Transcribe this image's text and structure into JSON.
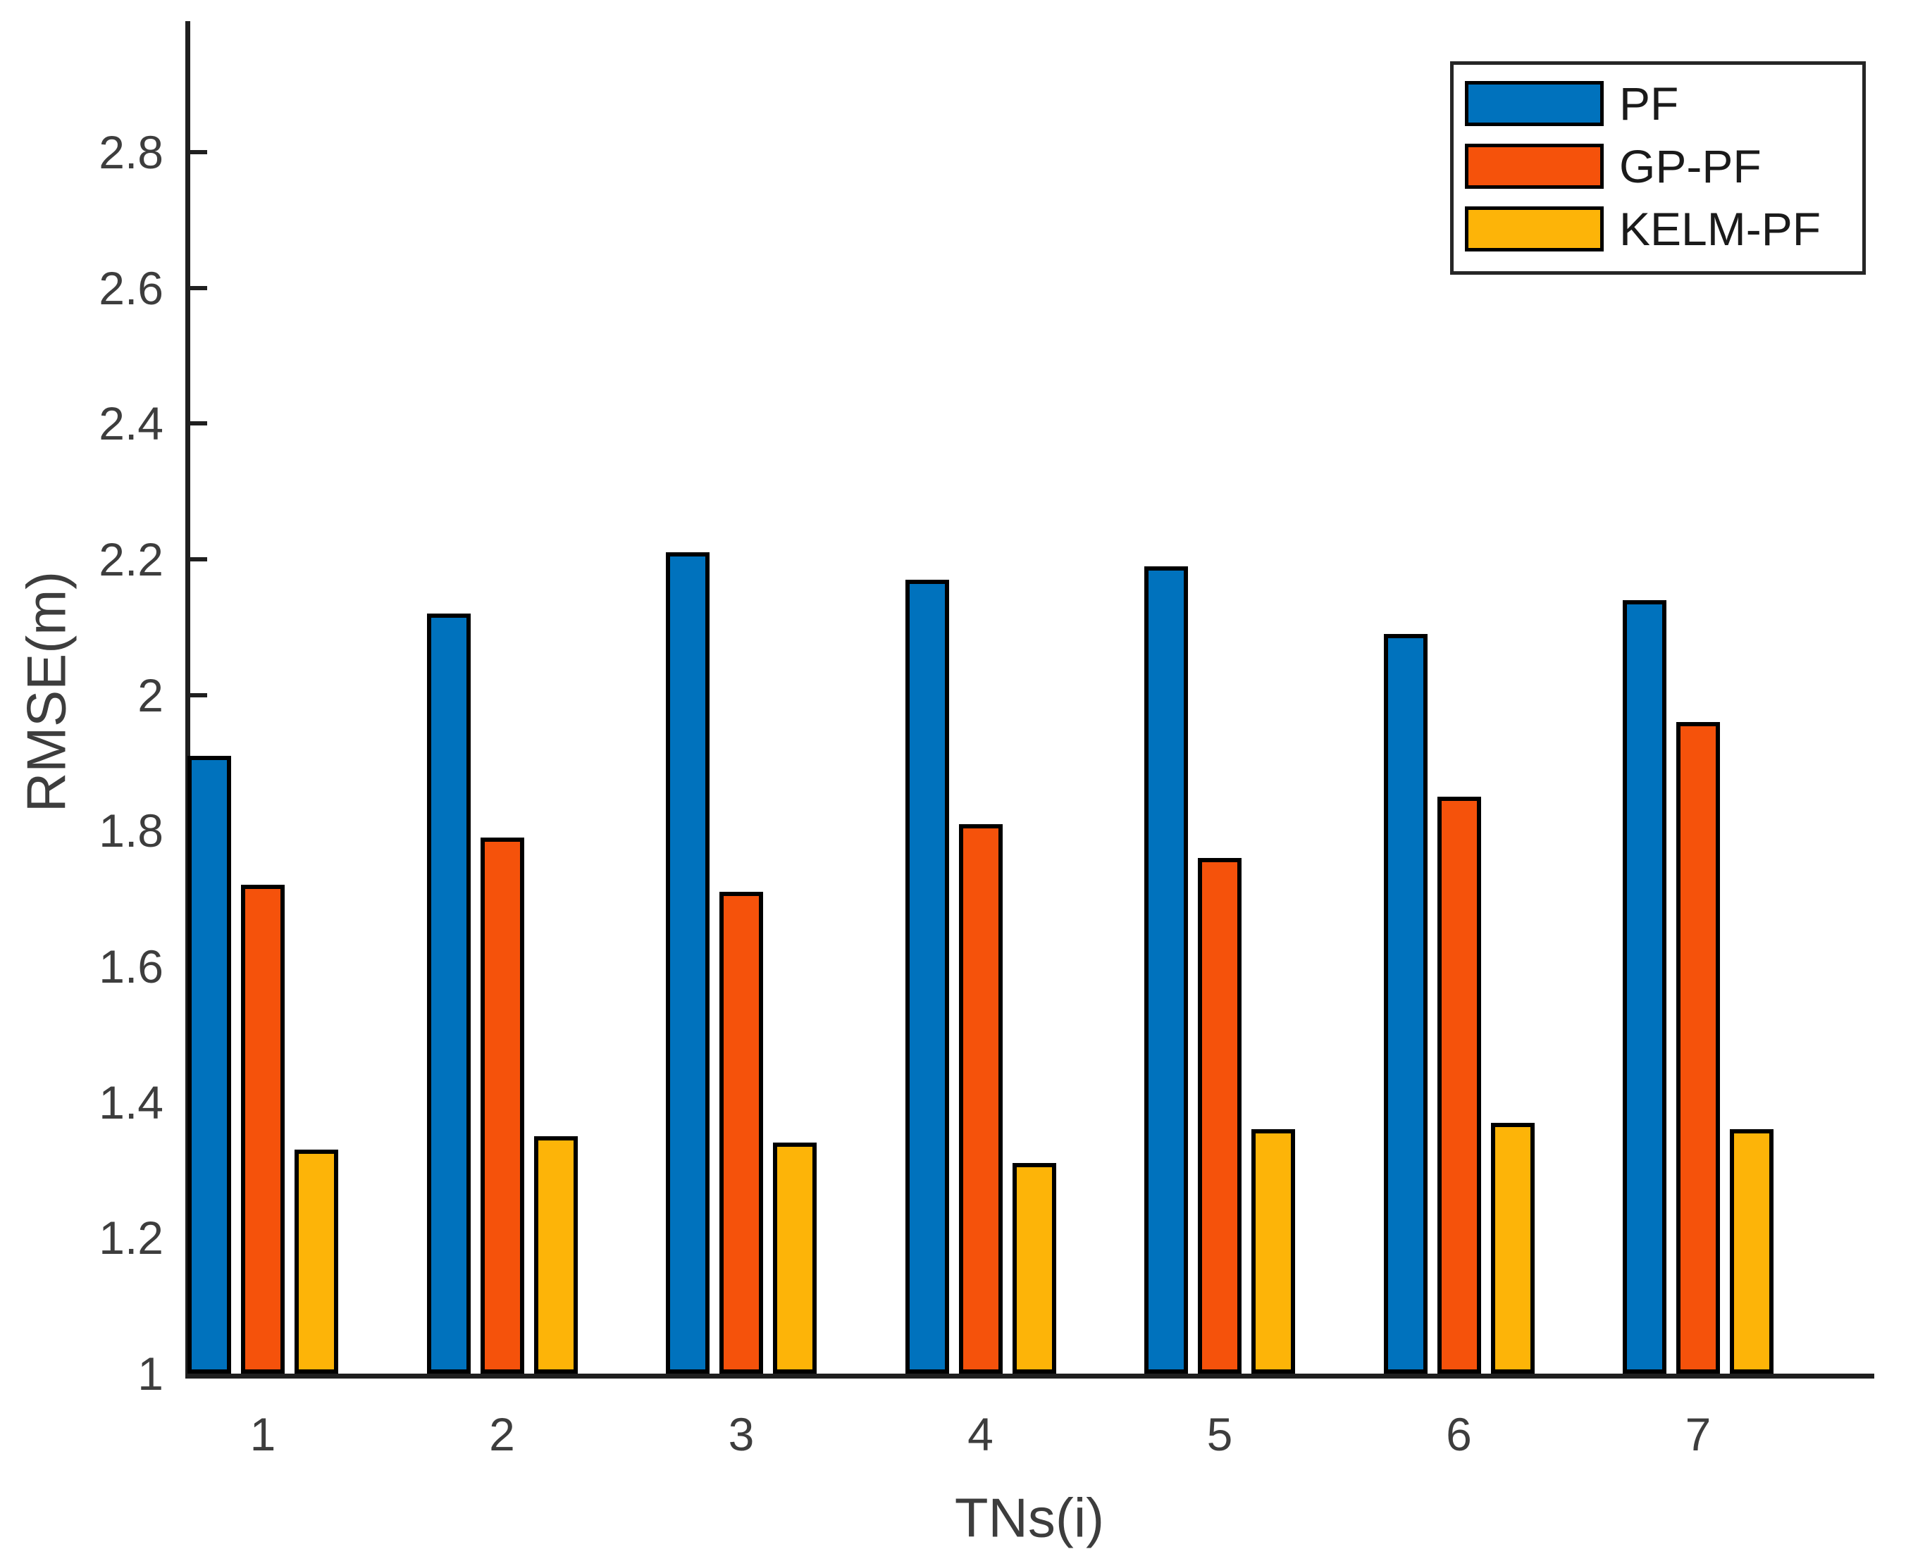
{
  "chart_data": {
    "type": "bar",
    "title": "",
    "xlabel": "TNs(i)",
    "ylabel": "RMSE(m)",
    "categories": [
      "1",
      "2",
      "3",
      "4",
      "5",
      "6",
      "7"
    ],
    "series": [
      {
        "name": "PF",
        "color": "#0072BD",
        "values": [
          1.91,
          2.12,
          2.21,
          2.17,
          2.19,
          2.09,
          2.14
        ]
      },
      {
        "name": "GP-PF",
        "color": "#F5520B",
        "values": [
          1.72,
          1.79,
          1.71,
          1.81,
          1.76,
          1.85,
          1.96
        ]
      },
      {
        "name": "KELM-PF",
        "color": "#FDB408",
        "values": [
          1.33,
          1.35,
          1.34,
          1.31,
          1.36,
          1.37,
          1.36
        ]
      }
    ],
    "ylim": [
      1,
      3
    ],
    "yticks": [
      1,
      1.2,
      1.4,
      1.6,
      1.8,
      2,
      2.2,
      2.4,
      2.6,
      2.8
    ],
    "ytick_labels": [
      "1",
      "1.2",
      "1.4",
      "1.6",
      "1.8",
      "2",
      "2.2",
      "2.4",
      "2.6",
      "2.8"
    ],
    "grid": false,
    "legend_position": "top-right",
    "bar_edge_color": "#000000",
    "axis_color": "#1f1f1f",
    "tick_label_color": "#3d3d3d",
    "background_color": "#ffffff"
  }
}
